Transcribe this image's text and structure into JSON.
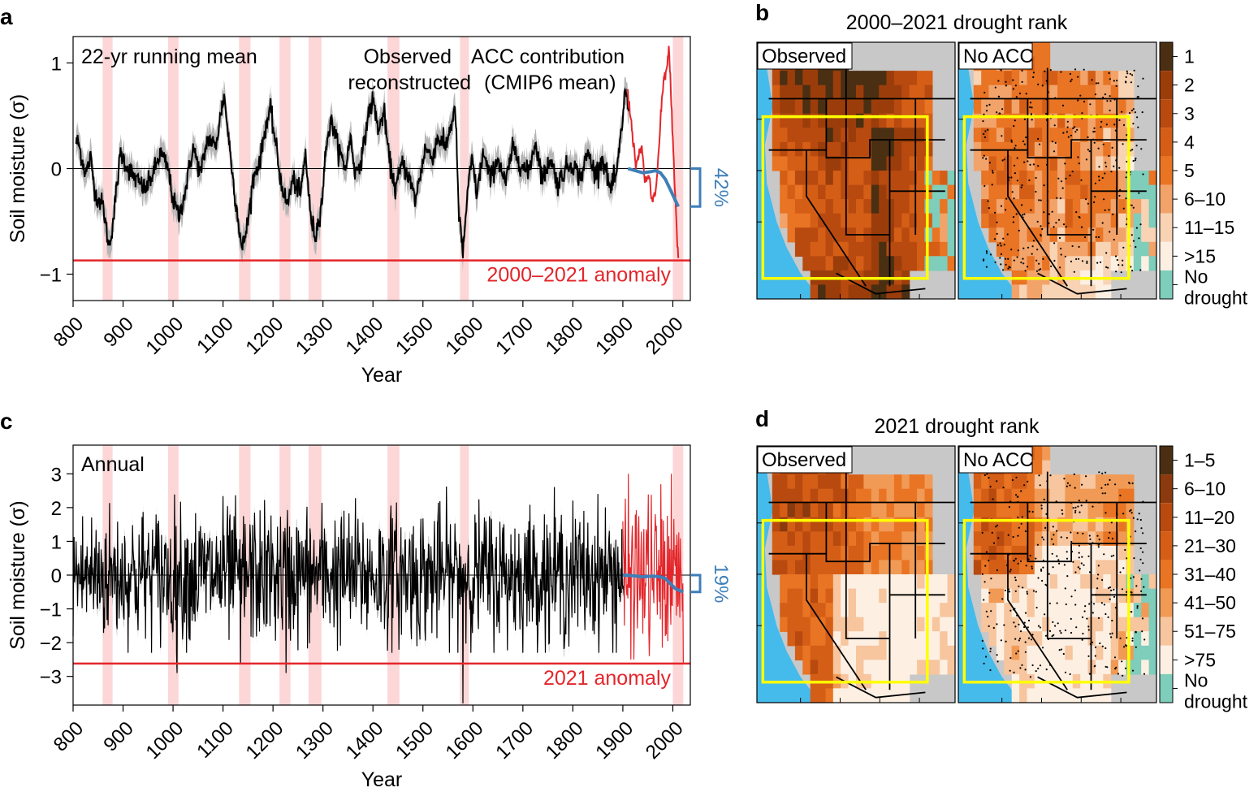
{
  "colors": {
    "observed": "#e3262b",
    "acc": "#3f7fb8",
    "recon": "#000000",
    "band": "#b5b5b5",
    "megadrought": "#fdd7d7",
    "ocean": "#44bbea",
    "land_gray": "#c8c8c8",
    "box": "#ffff00",
    "no_drought": "#7fcdbb"
  },
  "megadrought_periods": [
    [
      859,
      879
    ],
    [
      990,
      1011
    ],
    [
      1132,
      1155
    ],
    [
      1213,
      1235
    ],
    [
      1271,
      1297
    ],
    [
      1429,
      1453
    ],
    [
      1574,
      1592
    ],
    [
      2000,
      2021
    ]
  ],
  "chart_data": [
    {
      "id": "a",
      "type": "line",
      "panel_label": "a",
      "corner_label": "22-yr running mean",
      "legend": {
        "observed": "Observed",
        "reconstructed": "reconstructed",
        "acc_1": "ACC contribution",
        "acc_2": "(CMIP6 mean)"
      },
      "xlabel": "Year",
      "ylabel": "Soil moisture (σ)",
      "xlim": [
        800,
        2035
      ],
      "ylim": [
        -1.25,
        1.25
      ],
      "xticks": [
        800,
        900,
        1000,
        1100,
        1200,
        1300,
        1400,
        1500,
        1600,
        1700,
        1800,
        1900,
        2000
      ],
      "yticks": [
        -1,
        0,
        1
      ],
      "anomaly": {
        "value": -0.87,
        "label": "2000–2021 anomaly"
      },
      "acc_percent": "42%",
      "recon_keypoints": [
        [
          810,
          0.25
        ],
        [
          825,
          -0.05
        ],
        [
          835,
          0.1
        ],
        [
          845,
          -0.25
        ],
        [
          860,
          -0.35
        ],
        [
          872,
          -0.75
        ],
        [
          880,
          -0.5
        ],
        [
          895,
          0.15
        ],
        [
          910,
          0.0
        ],
        [
          925,
          -0.1
        ],
        [
          945,
          -0.2
        ],
        [
          960,
          -0.05
        ],
        [
          975,
          0.15
        ],
        [
          990,
          0.0
        ],
        [
          1000,
          -0.3
        ],
        [
          1012,
          -0.45
        ],
        [
          1025,
          -0.2
        ],
        [
          1040,
          0.2
        ],
        [
          1055,
          -0.05
        ],
        [
          1070,
          0.3
        ],
        [
          1085,
          0.2
        ],
        [
          1095,
          0.5
        ],
        [
          1102,
          0.7
        ],
        [
          1110,
          0.35
        ],
        [
          1120,
          -0.1
        ],
        [
          1128,
          -0.4
        ],
        [
          1138,
          -0.78
        ],
        [
          1150,
          -0.5
        ],
        [
          1160,
          -0.1
        ],
        [
          1175,
          0.1
        ],
        [
          1185,
          0.4
        ],
        [
          1195,
          0.55
        ],
        [
          1205,
          0.25
        ],
        [
          1215,
          -0.1
        ],
        [
          1228,
          -0.35
        ],
        [
          1240,
          -0.1
        ],
        [
          1255,
          -0.25
        ],
        [
          1265,
          0.15
        ],
        [
          1275,
          -0.45
        ],
        [
          1285,
          -0.65
        ],
        [
          1298,
          -0.3
        ],
        [
          1308,
          0.3
        ],
        [
          1318,
          0.45
        ],
        [
          1330,
          0.2
        ],
        [
          1345,
          0.0
        ],
        [
          1355,
          0.3
        ],
        [
          1365,
          -0.05
        ],
        [
          1380,
          0.15
        ],
        [
          1390,
          0.5
        ],
        [
          1400,
          0.65
        ],
        [
          1412,
          0.35
        ],
        [
          1422,
          0.55
        ],
        [
          1432,
          0.1
        ],
        [
          1445,
          -0.2
        ],
        [
          1458,
          0.05
        ],
        [
          1470,
          -0.05
        ],
        [
          1485,
          -0.3
        ],
        [
          1495,
          -0.05
        ],
        [
          1505,
          0.2
        ],
        [
          1518,
          0.1
        ],
        [
          1530,
          0.3
        ],
        [
          1545,
          0.2
        ],
        [
          1558,
          0.45
        ],
        [
          1565,
          0.55
        ],
        [
          1572,
          -0.45
        ],
        [
          1580,
          -0.8
        ],
        [
          1588,
          -0.3
        ],
        [
          1598,
          0.1
        ],
        [
          1608,
          -0.25
        ],
        [
          1620,
          0.15
        ],
        [
          1635,
          -0.1
        ],
        [
          1650,
          0.1
        ],
        [
          1665,
          -0.15
        ],
        [
          1680,
          0.2
        ],
        [
          1695,
          0.05
        ],
        [
          1710,
          -0.05
        ],
        [
          1725,
          0.25
        ],
        [
          1740,
          -0.1
        ],
        [
          1755,
          0.1
        ],
        [
          1770,
          -0.15
        ],
        [
          1785,
          0.0
        ],
        [
          1800,
          0.05
        ],
        [
          1815,
          -0.1
        ],
        [
          1830,
          0.15
        ],
        [
          1845,
          -0.05
        ],
        [
          1860,
          0.1
        ],
        [
          1875,
          -0.2
        ],
        [
          1888,
          -0.05
        ],
        [
          1898,
          0.4
        ],
        [
          1905,
          0.75
        ],
        [
          1912,
          0.55
        ]
      ],
      "observed_keypoints": [
        [
          1910,
          0.7
        ],
        [
          1918,
          0.4
        ],
        [
          1925,
          0.05
        ],
        [
          1932,
          0.1
        ],
        [
          1938,
          0.2
        ],
        [
          1945,
          -0.15
        ],
        [
          1952,
          -0.05
        ],
        [
          1958,
          -0.3
        ],
        [
          1965,
          -0.25
        ],
        [
          1970,
          0.0
        ],
        [
          1976,
          0.5
        ],
        [
          1982,
          0.85
        ],
        [
          1988,
          0.95
        ],
        [
          1992,
          1.12
        ],
        [
          1996,
          0.75
        ],
        [
          2000,
          0.3
        ],
        [
          2004,
          -0.2
        ],
        [
          2008,
          -0.6
        ],
        [
          2011,
          -0.87
        ]
      ],
      "acc_keypoints": [
        [
          1910,
          0.0
        ],
        [
          1925,
          -0.02
        ],
        [
          1940,
          -0.04
        ],
        [
          1955,
          -0.03
        ],
        [
          1965,
          -0.02
        ],
        [
          1975,
          -0.04
        ],
        [
          1985,
          -0.1
        ],
        [
          1995,
          -0.2
        ],
        [
          2005,
          -0.3
        ],
        [
          2011,
          -0.36
        ]
      ]
    },
    {
      "id": "c",
      "type": "line",
      "panel_label": "c",
      "corner_label": "Annual",
      "xlabel": "Year",
      "ylabel": "Soil moisture (σ)",
      "xlim": [
        800,
        2035
      ],
      "ylim": [
        -3.85,
        3.85
      ],
      "xticks": [
        800,
        900,
        1000,
        1100,
        1200,
        1300,
        1400,
        1500,
        1600,
        1700,
        1800,
        1900,
        2000
      ],
      "yticks": [
        -3,
        -2,
        -1,
        0,
        1,
        2,
        3
      ],
      "anomaly": {
        "value": -2.62,
        "label": "2021 anomaly"
      },
      "acc_percent": "19%",
      "acc_keypoints": [
        [
          1900,
          0.0
        ],
        [
          1920,
          -0.02
        ],
        [
          1940,
          -0.05
        ],
        [
          1960,
          -0.03
        ],
        [
          1975,
          -0.05
        ],
        [
          1985,
          -0.1
        ],
        [
          1995,
          -0.25
        ],
        [
          2005,
          -0.4
        ],
        [
          2021,
          -0.5
        ]
      ],
      "notable_minima": [
        [
          1580,
          -3.8
        ],
        [
          1226,
          -2.9
        ],
        [
          1008,
          -2.9
        ],
        [
          1135,
          -2.6
        ],
        [
          1880,
          -2.3
        ]
      ]
    }
  ],
  "maps": {
    "b": {
      "panel_label": "b",
      "title": "2000–2021 drought rank",
      "left_label": "Observed",
      "right_label": "No ACC",
      "legend": [
        "1",
        "2",
        "3",
        "4",
        "5",
        "6–10",
        "11–15",
        ">15",
        "No drought"
      ],
      "legend_colors": [
        "#4a2f12",
        "#9b3d0b",
        "#b84a10",
        "#d55e17",
        "#e87424",
        "#f2a36a",
        "#f8d3b4",
        "#fdf0e3",
        "#7fcdbb"
      ]
    },
    "d": {
      "panel_label": "d",
      "title": "2021 drought rank",
      "left_label": "Observed",
      "right_label": "No ACC",
      "legend": [
        "1–5",
        "6–10",
        "11–20",
        "21–30",
        "31–40",
        "41–50",
        "51–75",
        ">75",
        "No drought"
      ],
      "legend_colors": [
        "#4a2f12",
        "#8a3a0e",
        "#b84a10",
        "#d55e17",
        "#e87424",
        "#f09a55",
        "#f7c59e",
        "#fdf0e3",
        "#7fcdbb"
      ]
    }
  }
}
